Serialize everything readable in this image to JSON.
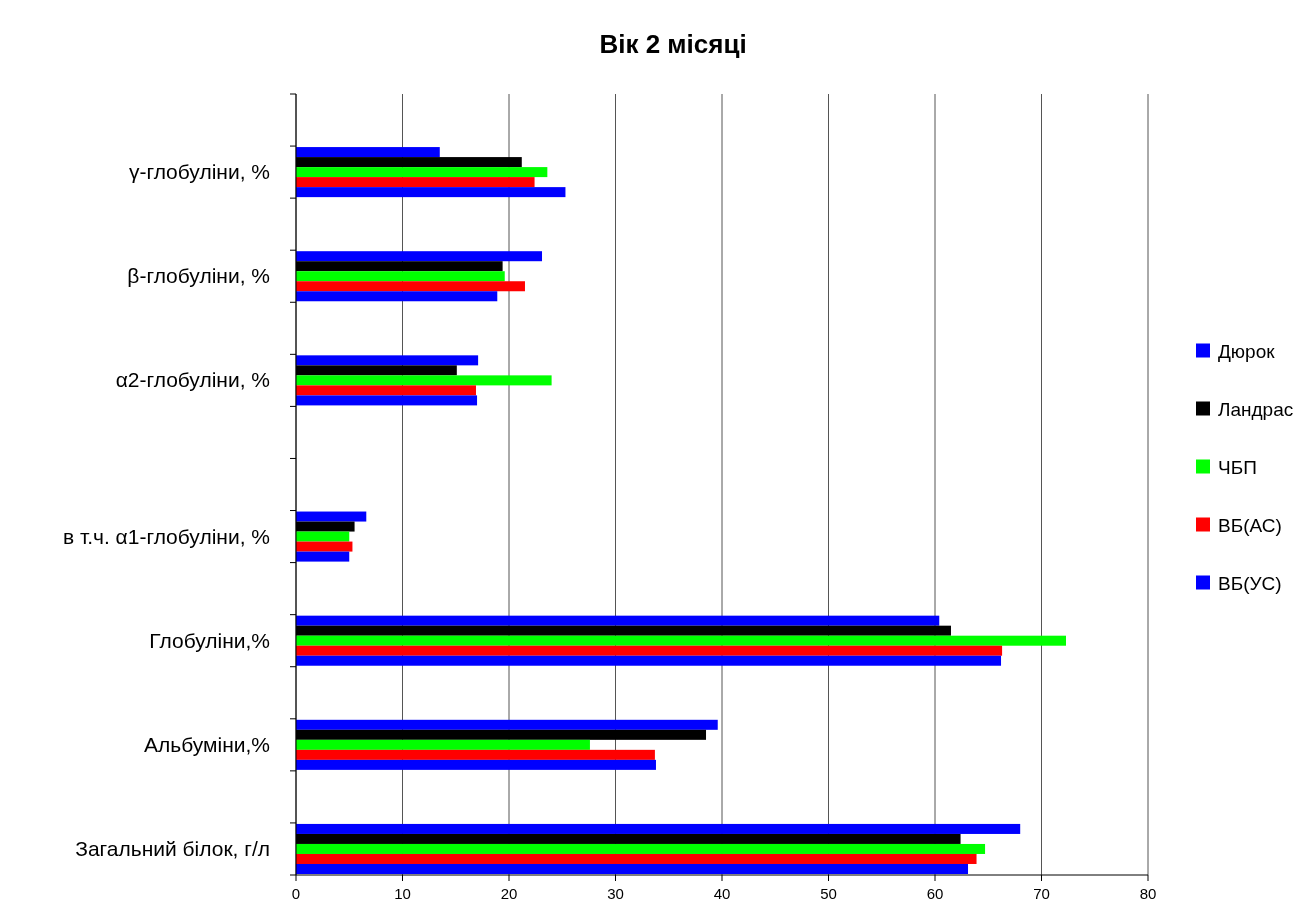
{
  "chart_data": {
    "type": "bar",
    "orientation": "horizontal",
    "title": "Вік 2 місяці",
    "categories": [
      null,
      "γ-глобуліни, %",
      null,
      "β-глобуліни, %",
      null,
      "α2-глобуліни, %",
      null,
      null,
      "в т.ч. α1-глобуліни, %",
      null,
      "Глобуліни,%",
      null,
      "Альбуміни,%",
      null,
      "Загальний білок, г/л"
    ],
    "series": [
      {
        "name": "Дюрок",
        "color": "#0000ff",
        "values": [
          null,
          13.5,
          null,
          23.1,
          null,
          17.1,
          null,
          null,
          6.6,
          null,
          60.4,
          null,
          39.6,
          null,
          68.0
        ]
      },
      {
        "name": "Ландрас",
        "color": "#000000",
        "values": [
          null,
          21.2,
          null,
          19.4,
          null,
          15.1,
          null,
          null,
          5.5,
          null,
          61.5,
          null,
          38.5,
          null,
          62.4
        ]
      },
      {
        "name": "ЧБП",
        "color": "#00ff00",
        "values": [
          null,
          23.6,
          null,
          19.6,
          null,
          24.0,
          null,
          null,
          5.0,
          null,
          72.3,
          null,
          27.6,
          null,
          64.7
        ]
      },
      {
        "name": "ВБ(АС)",
        "color": "#ff0000",
        "values": [
          null,
          22.4,
          null,
          21.5,
          null,
          16.9,
          null,
          null,
          5.3,
          null,
          66.3,
          null,
          33.7,
          null,
          63.9
        ]
      },
      {
        "name": "ВБ(УС)",
        "color": "#0000ff",
        "values": [
          null,
          25.3,
          null,
          18.9,
          null,
          17.0,
          null,
          null,
          5.0,
          null,
          66.2,
          null,
          33.8,
          null,
          63.1
        ]
      }
    ],
    "xlim": [
      0,
      80
    ],
    "xticks": [
      0,
      10,
      20,
      30,
      40,
      50,
      60,
      70,
      80
    ],
    "grid": "x",
    "legend": "right"
  }
}
